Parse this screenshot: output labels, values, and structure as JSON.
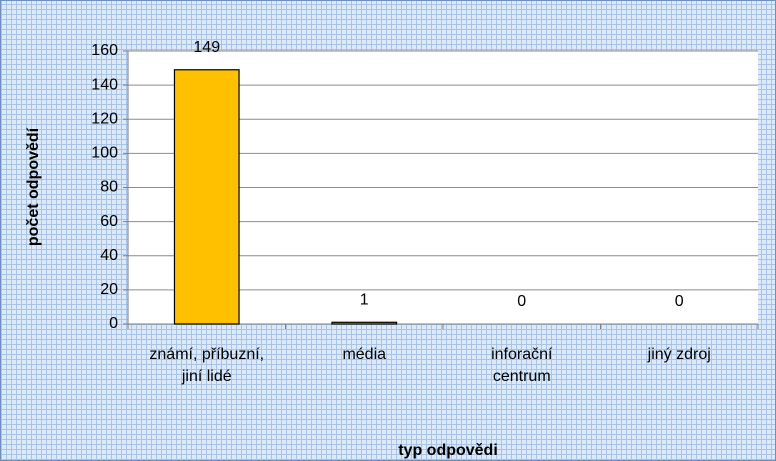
{
  "chart_data": {
    "type": "bar",
    "categories": [
      "známí, příbuzní,\njiní lidé",
      "média",
      "inforační\ncentrum",
      "jiný zdroj"
    ],
    "values": [
      149,
      1,
      0,
      0
    ],
    "color": "#ffc000",
    "ylabel": "počet odpovědí",
    "xlabel": "typ odpovědi",
    "ylim": [
      0,
      160
    ],
    "yticks": [
      0,
      20,
      40,
      60,
      80,
      100,
      120,
      140,
      160
    ],
    "grid": true
  }
}
